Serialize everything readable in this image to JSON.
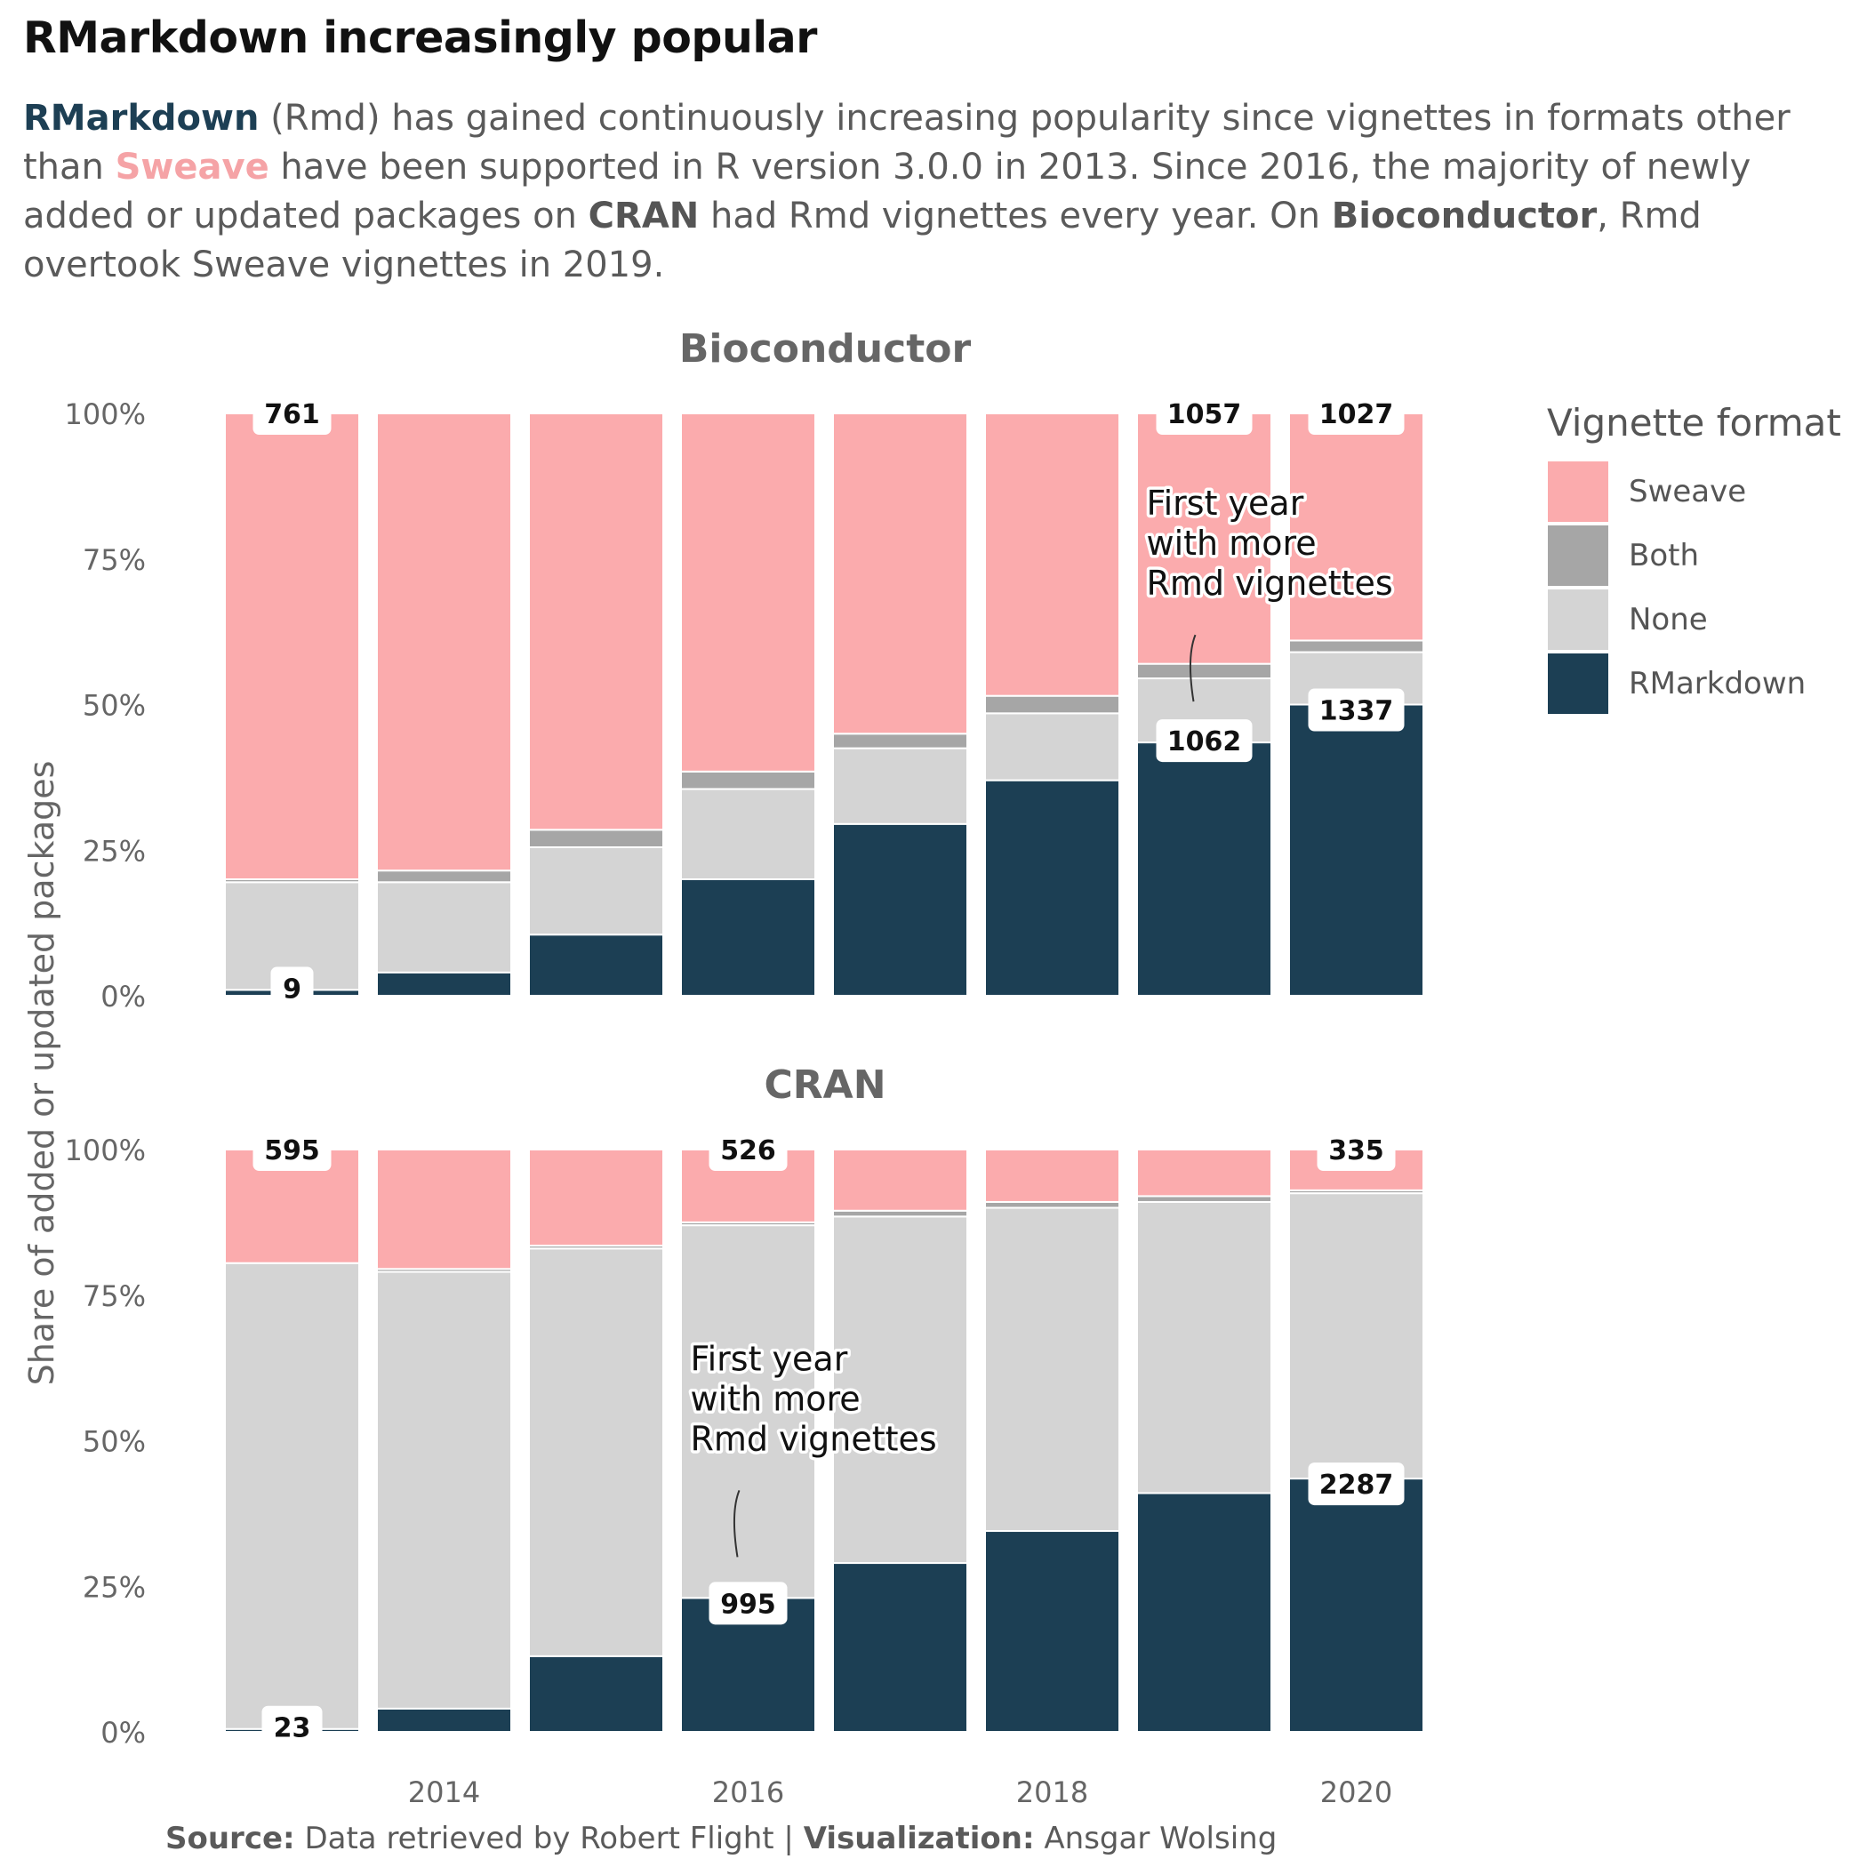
{
  "title": "RMarkdown increasingly popular",
  "subtitle": {
    "part1_rmd": "RMarkdown",
    "part2": " (Rmd) has gained continuously increasing popularity since vignettes in formats other than ",
    "part3_sweave": "Sweave",
    "part4": " have been supported in R version 3.0.0 in 2013. Since 2016, the majority of newly added or updated packages on ",
    "part5_cran": "CRAN",
    "part6": " had Rmd vignettes every year. On ",
    "part7_bioc": "Bioconductor",
    "part8": ", Rmd overtook Sweave vignettes in 2019."
  },
  "caption": {
    "source_label": "Source:",
    "source_text": " Data retrieved by Robert Flight | ",
    "viz_label": "Visualization:",
    "viz_text": " Ansgar Wolsing"
  },
  "colors": {
    "Sweave": "#fbabad",
    "Both": "#a6a6a6",
    "None": "#d4d4d4",
    "RMarkdown": "#1c3f54"
  },
  "chart_data": [
    {
      "type": "bar",
      "stacked": "percent",
      "panel_title": "Bioconductor",
      "ylabel": "Share of added or updated packages",
      "x": [
        2013,
        2014,
        2015,
        2016,
        2017,
        2018,
        2019,
        2020
      ],
      "x_tick_labels": [
        "2014",
        "2016",
        "2018",
        "2020"
      ],
      "y_tick_labels": [
        "0%",
        "25%",
        "50%",
        "75%",
        "100%"
      ],
      "ylim": [
        0,
        1
      ],
      "series": [
        {
          "name": "RMarkdown",
          "values": [
            0.01,
            0.04,
            0.105,
            0.2,
            0.295,
            0.37,
            0.435,
            0.5
          ]
        },
        {
          "name": "None",
          "values": [
            0.185,
            0.155,
            0.15,
            0.155,
            0.13,
            0.115,
            0.11,
            0.09
          ]
        },
        {
          "name": "Both",
          "values": [
            0.005,
            0.02,
            0.03,
            0.03,
            0.025,
            0.03,
            0.025,
            0.02
          ]
        },
        {
          "name": "Sweave",
          "values": [
            0.8,
            0.785,
            0.715,
            0.615,
            0.55,
            0.485,
            0.43,
            0.39
          ]
        }
      ],
      "labels": [
        {
          "x": 2013,
          "text": "761",
          "at": "top"
        },
        {
          "x": 2013,
          "text": "9",
          "at": "rmd"
        },
        {
          "x": 2019,
          "text": "1057",
          "at": "top"
        },
        {
          "x": 2019,
          "text": "1062",
          "at": "rmd"
        },
        {
          "x": 2020,
          "text": "1027",
          "at": "top"
        },
        {
          "x": 2020,
          "text": "1337",
          "at": "rmd"
        }
      ],
      "annotation": {
        "x": 2019,
        "text": [
          "First year",
          "with more",
          "Rmd vignettes"
        ]
      }
    },
    {
      "type": "bar",
      "stacked": "percent",
      "panel_title": "CRAN",
      "ylabel": "Share of added or updated packages",
      "x": [
        2013,
        2014,
        2015,
        2016,
        2017,
        2018,
        2019,
        2020
      ],
      "x_tick_labels": [
        "2014",
        "2016",
        "2018",
        "2020"
      ],
      "y_tick_labels": [
        "0%",
        "25%",
        "50%",
        "75%",
        "100%"
      ],
      "ylim": [
        0,
        1
      ],
      "series": [
        {
          "name": "RMarkdown",
          "values": [
            0.005,
            0.04,
            0.13,
            0.23,
            0.29,
            0.345,
            0.41,
            0.435
          ]
        },
        {
          "name": "None",
          "values": [
            0.8,
            0.75,
            0.7,
            0.64,
            0.595,
            0.555,
            0.5,
            0.49
          ]
        },
        {
          "name": "Both",
          "values": [
            0.0,
            0.005,
            0.005,
            0.005,
            0.01,
            0.01,
            0.01,
            0.005
          ]
        },
        {
          "name": "Sweave",
          "values": [
            0.195,
            0.205,
            0.165,
            0.125,
            0.105,
            0.09,
            0.08,
            0.07
          ]
        }
      ],
      "labels": [
        {
          "x": 2013,
          "text": "595",
          "at": "top"
        },
        {
          "x": 2013,
          "text": "23",
          "at": "rmd"
        },
        {
          "x": 2016,
          "text": "526",
          "at": "top"
        },
        {
          "x": 2016,
          "text": "995",
          "at": "rmd"
        },
        {
          "x": 2020,
          "text": "335",
          "at": "top"
        },
        {
          "x": 2020,
          "text": "2287",
          "at": "rmd"
        }
      ],
      "annotation": {
        "x": 2016,
        "text": [
          "First year",
          "with more",
          "Rmd vignettes"
        ]
      }
    }
  ],
  "legend": {
    "title": "Vignette format",
    "items": [
      "Sweave",
      "Both",
      "None",
      "RMarkdown"
    ]
  }
}
